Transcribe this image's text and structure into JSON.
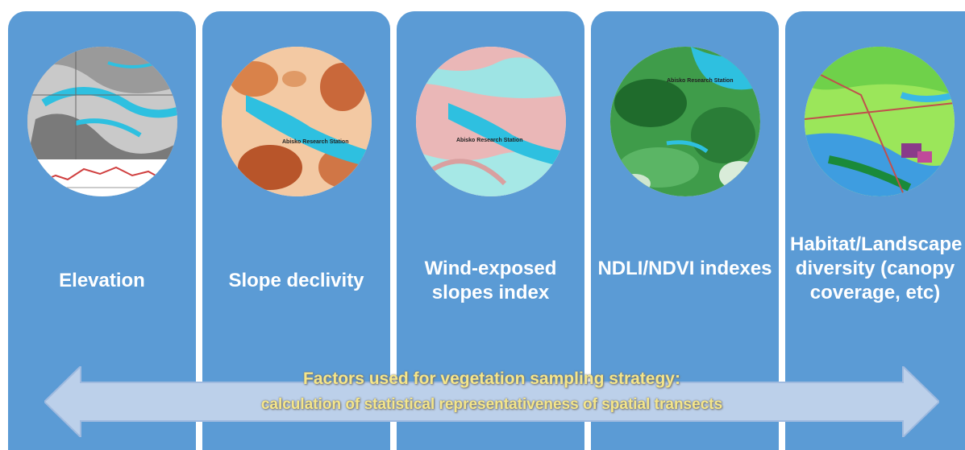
{
  "panels": [
    {
      "label": "Elevation",
      "image": "elevation-map"
    },
    {
      "label": "Slope declivity",
      "image": "slope-map"
    },
    {
      "label": "Wind-exposed slopes index",
      "image": "wind-exposure-map"
    },
    {
      "label": "NDLI/NDVI indexes",
      "image": "ndvi-map"
    },
    {
      "label": "Habitat/Landscape diversity (canopy coverage, etc)",
      "image": "habitat-map"
    }
  ],
  "map_label": "Abisko Research Station",
  "arrow": {
    "title": "Factors used for vegetation sampling strategy:",
    "subtitle": "calculation of statistical representativeness of spatial transects"
  },
  "colors": {
    "panel": "#5b9bd5",
    "arrow_fill": "#bcd0ea",
    "caption": "#f5e68a"
  }
}
